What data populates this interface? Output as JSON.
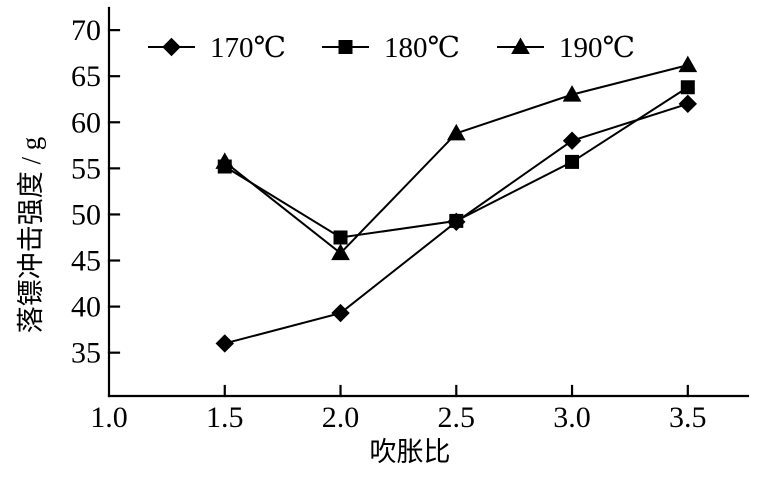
{
  "figure": {
    "background_color": "#ffffff",
    "line_color": "#000000"
  },
  "chart_data": {
    "type": "line",
    "title": "",
    "xlabel": "吹胀比",
    "ylabel": "落镖冲击强度 / g",
    "grid": false,
    "legend_position": "top-inside",
    "xlim": [
      1.0,
      3.76
    ],
    "ylim": [
      30.3,
      72.4
    ],
    "x_ticks": [
      1.0,
      1.5,
      2.0,
      2.5,
      3.0,
      3.5
    ],
    "x_tick_labels": [
      "1.0",
      "1.5",
      "2.0",
      "2.5",
      "3.0",
      "3.5"
    ],
    "y_ticks": [
      35,
      40,
      45,
      50,
      55,
      60,
      65,
      70
    ],
    "y_tick_labels": [
      "35",
      "40",
      "45",
      "50",
      "55",
      "60",
      "65",
      "70"
    ],
    "x": [
      1.5,
      2.0,
      2.5,
      3.0,
      3.5
    ],
    "series": [
      {
        "name": "170℃",
        "marker": "diamond",
        "color": "#000000",
        "values": [
          36.0,
          39.3,
          49.2,
          58.0,
          62.0
        ]
      },
      {
        "name": "180℃",
        "marker": "square",
        "color": "#000000",
        "values": [
          55.2,
          47.5,
          49.3,
          55.7,
          63.8
        ]
      },
      {
        "name": "190℃",
        "marker": "triangle",
        "color": "#000000",
        "values": [
          55.7,
          45.8,
          58.8,
          63.0,
          66.2
        ]
      }
    ]
  }
}
